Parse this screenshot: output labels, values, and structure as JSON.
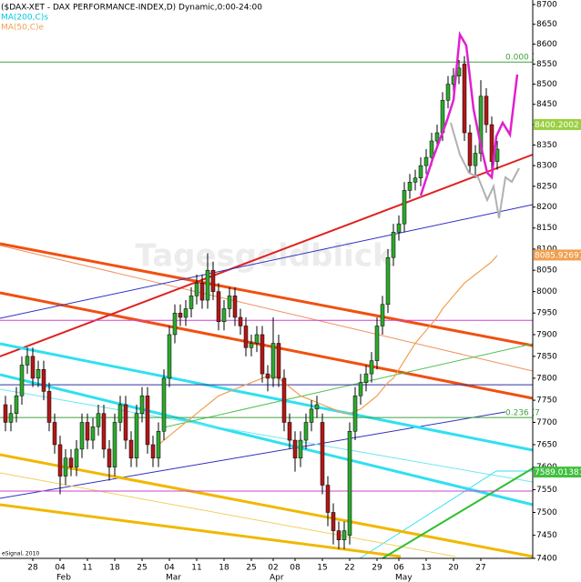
{
  "chart_data": {
    "type": "candlestick",
    "title": "($DAX-XET - DAX PERFORMANCE-INDEX,D) Dynamic,0:00-24:00",
    "legend": [
      {
        "name": "MA(200,C)s",
        "color": "#00c8e0"
      },
      {
        "name": "MA(50,C)e",
        "color": "#f0a050"
      }
    ],
    "watermark": "Tagesgeldblick",
    "credit": "eSignal, 2010",
    "log_scale": true,
    "grid": false,
    "up_color": "#2ea82e",
    "down_color": "#b01818",
    "xlim": [
      -1,
      96.5
    ],
    "ylim": [
      7400,
      8700
    ],
    "yticks": [
      7400,
      7450,
      7500,
      7550,
      7600,
      7650,
      7700,
      7750,
      7800,
      7850,
      7900,
      7950,
      8000,
      8050,
      8100,
      8150,
      8200,
      8250,
      8300,
      8350,
      8400,
      8450,
      8500,
      8550,
      8600,
      8650,
      8700
    ],
    "xticks": [
      {
        "value": 5,
        "label": "28"
      },
      {
        "value": 10,
        "label": "04"
      },
      {
        "value": 15,
        "label": "11"
      },
      {
        "value": 20,
        "label": "18"
      },
      {
        "value": 25,
        "label": "25"
      },
      {
        "value": 30,
        "label": "04"
      },
      {
        "value": 35,
        "label": "11"
      },
      {
        "value": 40,
        "label": "18"
      },
      {
        "value": 45,
        "label": "25"
      },
      {
        "value": 49,
        "label": "02"
      },
      {
        "value": 53,
        "label": "08"
      },
      {
        "value": 58,
        "label": "15"
      },
      {
        "value": 63,
        "label": "22"
      },
      {
        "value": 68,
        "label": "29"
      },
      {
        "value": 72,
        "label": "06"
      },
      {
        "value": 77,
        "label": "13"
      },
      {
        "value": 82,
        "label": "20"
      },
      {
        "value": 87,
        "label": "27"
      }
    ],
    "month_ticks": [
      {
        "value": 10,
        "label": "Feb"
      },
      {
        "value": 30,
        "label": "Mar"
      },
      {
        "value": 49,
        "label": "Apr"
      },
      {
        "value": 72,
        "label": "May"
      }
    ],
    "open": [
      7740,
      7700,
      7720,
      7760,
      7830,
      7850,
      7800,
      7820,
      7770,
      7700,
      7650,
      7580,
      7620,
      7600,
      7640,
      7700,
      7660,
      7690,
      7720,
      7640,
      7600,
      7700,
      7740,
      7660,
      7620,
      7720,
      7760,
      7650,
      7620,
      7680,
      7800,
      7900,
      7950,
      7940,
      7960,
      7990,
      8020,
      7980,
      8050,
      8000,
      7930,
      7960,
      7990,
      7940,
      7920,
      7870,
      7880,
      7900,
      7810,
      7800,
      7880,
      7800,
      7700,
      7660,
      7620,
      7660,
      7700,
      7730,
      7700,
      7560,
      7500,
      7460,
      7440,
      7450,
      7680,
      7760,
      7790,
      7810,
      7840,
      7920,
      7970,
      8080,
      8140,
      8160,
      8240,
      8260,
      8270,
      8300,
      8320,
      8360,
      8380,
      8460,
      8500,
      8520,
      8550,
      8380,
      8300,
      8330,
      8470,
      8400,
      8310
    ],
    "high": [
      7760,
      7740,
      7780,
      7850,
      7870,
      7870,
      7840,
      7840,
      7790,
      7720,
      7670,
      7640,
      7640,
      7660,
      7720,
      7720,
      7710,
      7740,
      7740,
      7660,
      7720,
      7760,
      7760,
      7680,
      7740,
      7780,
      7780,
      7670,
      7700,
      7820,
      7920,
      7970,
      7970,
      7980,
      8010,
      8040,
      8040,
      8090,
      8070,
      8020,
      7980,
      8010,
      8010,
      7960,
      7940,
      7900,
      7920,
      7920,
      7830,
      7940,
      7900,
      7820,
      7720,
      7680,
      7680,
      7720,
      7750,
      7760,
      7720,
      7580,
      7520,
      7480,
      7480,
      7700,
      7780,
      7810,
      7830,
      7860,
      7940,
      7990,
      8100,
      8160,
      8180,
      8260,
      8280,
      8290,
      8320,
      8340,
      8380,
      8400,
      8480,
      8520,
      8540,
      8560,
      8570,
      8400,
      8350,
      8510,
      8490,
      8420,
      8360
    ],
    "low": [
      7680,
      7680,
      7700,
      7740,
      7810,
      7780,
      7780,
      7750,
      7680,
      7630,
      7540,
      7560,
      7580,
      7580,
      7620,
      7640,
      7640,
      7670,
      7620,
      7570,
      7580,
      7680,
      7640,
      7600,
      7600,
      7700,
      7630,
      7600,
      7600,
      7660,
      7780,
      7880,
      7920,
      7920,
      7940,
      7970,
      7960,
      7960,
      7980,
      7910,
      7910,
      7940,
      7920,
      7900,
      7850,
      7850,
      7860,
      7790,
      7770,
      7780,
      7780,
      7680,
      7640,
      7590,
      7600,
      7640,
      7680,
      7710,
      7540,
      7470,
      7430,
      7420,
      7420,
      7430,
      7660,
      7740,
      7770,
      7790,
      7820,
      7900,
      7950,
      8060,
      8120,
      8140,
      8220,
      8240,
      8250,
      8280,
      8300,
      8340,
      8360,
      8440,
      8480,
      8500,
      8360,
      8280,
      8270,
      8310,
      8380,
      8290,
      8290
    ],
    "close": [
      7700,
      7720,
      7760,
      7830,
      7850,
      7800,
      7820,
      7770,
      7700,
      7650,
      7580,
      7620,
      7600,
      7640,
      7700,
      7660,
      7690,
      7720,
      7640,
      7600,
      7700,
      7740,
      7660,
      7620,
      7720,
      7760,
      7650,
      7620,
      7680,
      7800,
      7900,
      7950,
      7940,
      7960,
      7990,
      8020,
      7980,
      8050,
      8000,
      7930,
      7960,
      7990,
      7940,
      7920,
      7870,
      7880,
      7900,
      7810,
      7800,
      7880,
      7800,
      7700,
      7660,
      7620,
      7660,
      7700,
      7730,
      7740,
      7560,
      7500,
      7460,
      7440,
      7460,
      7680,
      7760,
      7790,
      7810,
      7840,
      7920,
      7970,
      8080,
      8140,
      8160,
      8240,
      8260,
      8270,
      8300,
      8320,
      8360,
      8380,
      8460,
      8500,
      8520,
      8540,
      8380,
      8300,
      8330,
      8470,
      8400,
      8310,
      8340
    ],
    "ma": {
      "name": "MA(50,C)e",
      "color": "#f0a050",
      "values": [
        null,
        null,
        null,
        null,
        null,
        null,
        null,
        null,
        null,
        null,
        null,
        null,
        null,
        null,
        null,
        null,
        null,
        null,
        null,
        null,
        null,
        null,
        null,
        null,
        null,
        null,
        null,
        null,
        7650,
        7660,
        7670,
        7680,
        7690,
        7700,
        7710,
        7720,
        7730,
        7740,
        7750,
        7760,
        7765,
        7770,
        7775,
        7780,
        7785,
        7790,
        7795,
        7800,
        7805,
        7805,
        7800,
        7790,
        7780,
        7770,
        7760,
        7755,
        7750,
        7745,
        7740,
        7735,
        7730,
        7725,
        7720,
        7720,
        7725,
        7730,
        7740,
        7750,
        7760,
        7775,
        7790,
        7800,
        7820,
        7840,
        7860,
        7880,
        7895,
        7910,
        7925,
        7940,
        7960,
        7975,
        7990,
        8005,
        8020,
        8030,
        8040,
        8050,
        8060,
        8070,
        8085
      ]
    },
    "levels": [
      {
        "value": 8555,
        "color": "#40a040",
        "label": "0.000 ("
      },
      {
        "value": 7933,
        "color": "#d040d0"
      },
      {
        "value": 7785,
        "color": "#3030a0"
      },
      {
        "value": 7711,
        "color": "#40a040",
        "label": "0.236 (7"
      },
      {
        "value": 7547,
        "color": "#d040d0"
      }
    ],
    "price_boxes": [
      {
        "value": 8400.2002,
        "color": "#9ad040"
      },
      {
        "value": 8085.92691,
        "color": "#f0a050"
      },
      {
        "value": 7589.01381,
        "color": "#40c040"
      }
    ]
  }
}
